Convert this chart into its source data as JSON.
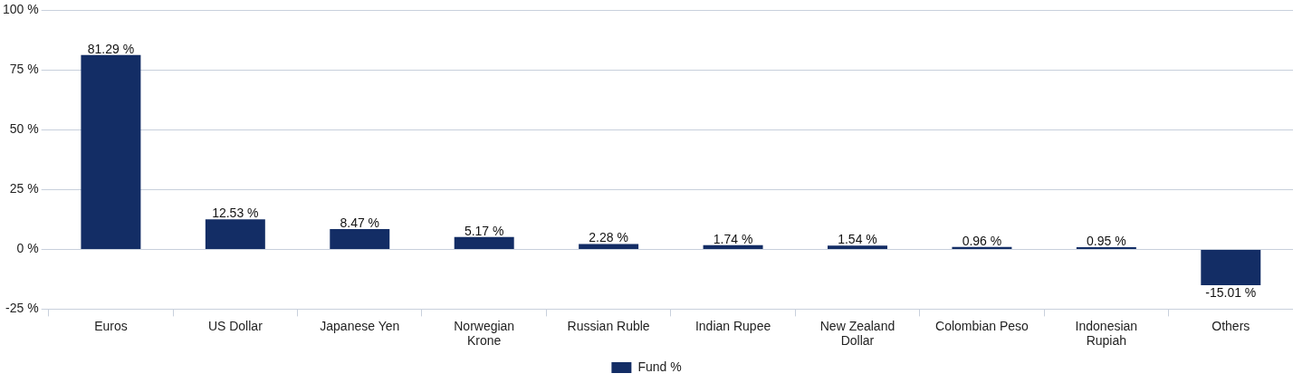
{
  "chart_data": {
    "type": "bar",
    "categories": [
      "Euros",
      "US Dollar",
      "Japanese Yen",
      "Norwegian Krone",
      "Russian Ruble",
      "Indian Rupee",
      "New Zealand Dollar",
      "Colombian Peso",
      "Indonesian Rupiah",
      "Others"
    ],
    "series": [
      {
        "name": "Fund %",
        "color": "#132d65",
        "values": [
          81.29,
          12.53,
          8.47,
          5.17,
          2.28,
          1.74,
          1.54,
          0.96,
          0.95,
          -15.01
        ],
        "value_labels": [
          "81.29 %",
          "12.53 %",
          "8.47 %",
          "5.17 %",
          "2.28 %",
          "1.74 %",
          "1.54 %",
          "0.96 %",
          "0.95 %",
          "-15.01 %"
        ]
      }
    ],
    "ylim": [
      -25,
      100
    ],
    "yticks": [
      {
        "value": -25,
        "label": "-25 %"
      },
      {
        "value": 0,
        "label": "0 %"
      },
      {
        "value": 25,
        "label": "25 %"
      },
      {
        "value": 50,
        "label": "50 %"
      },
      {
        "value": 75,
        "label": "75 %"
      },
      {
        "value": 100,
        "label": "100 %"
      }
    ],
    "grid": "y",
    "legend": "bottom"
  }
}
